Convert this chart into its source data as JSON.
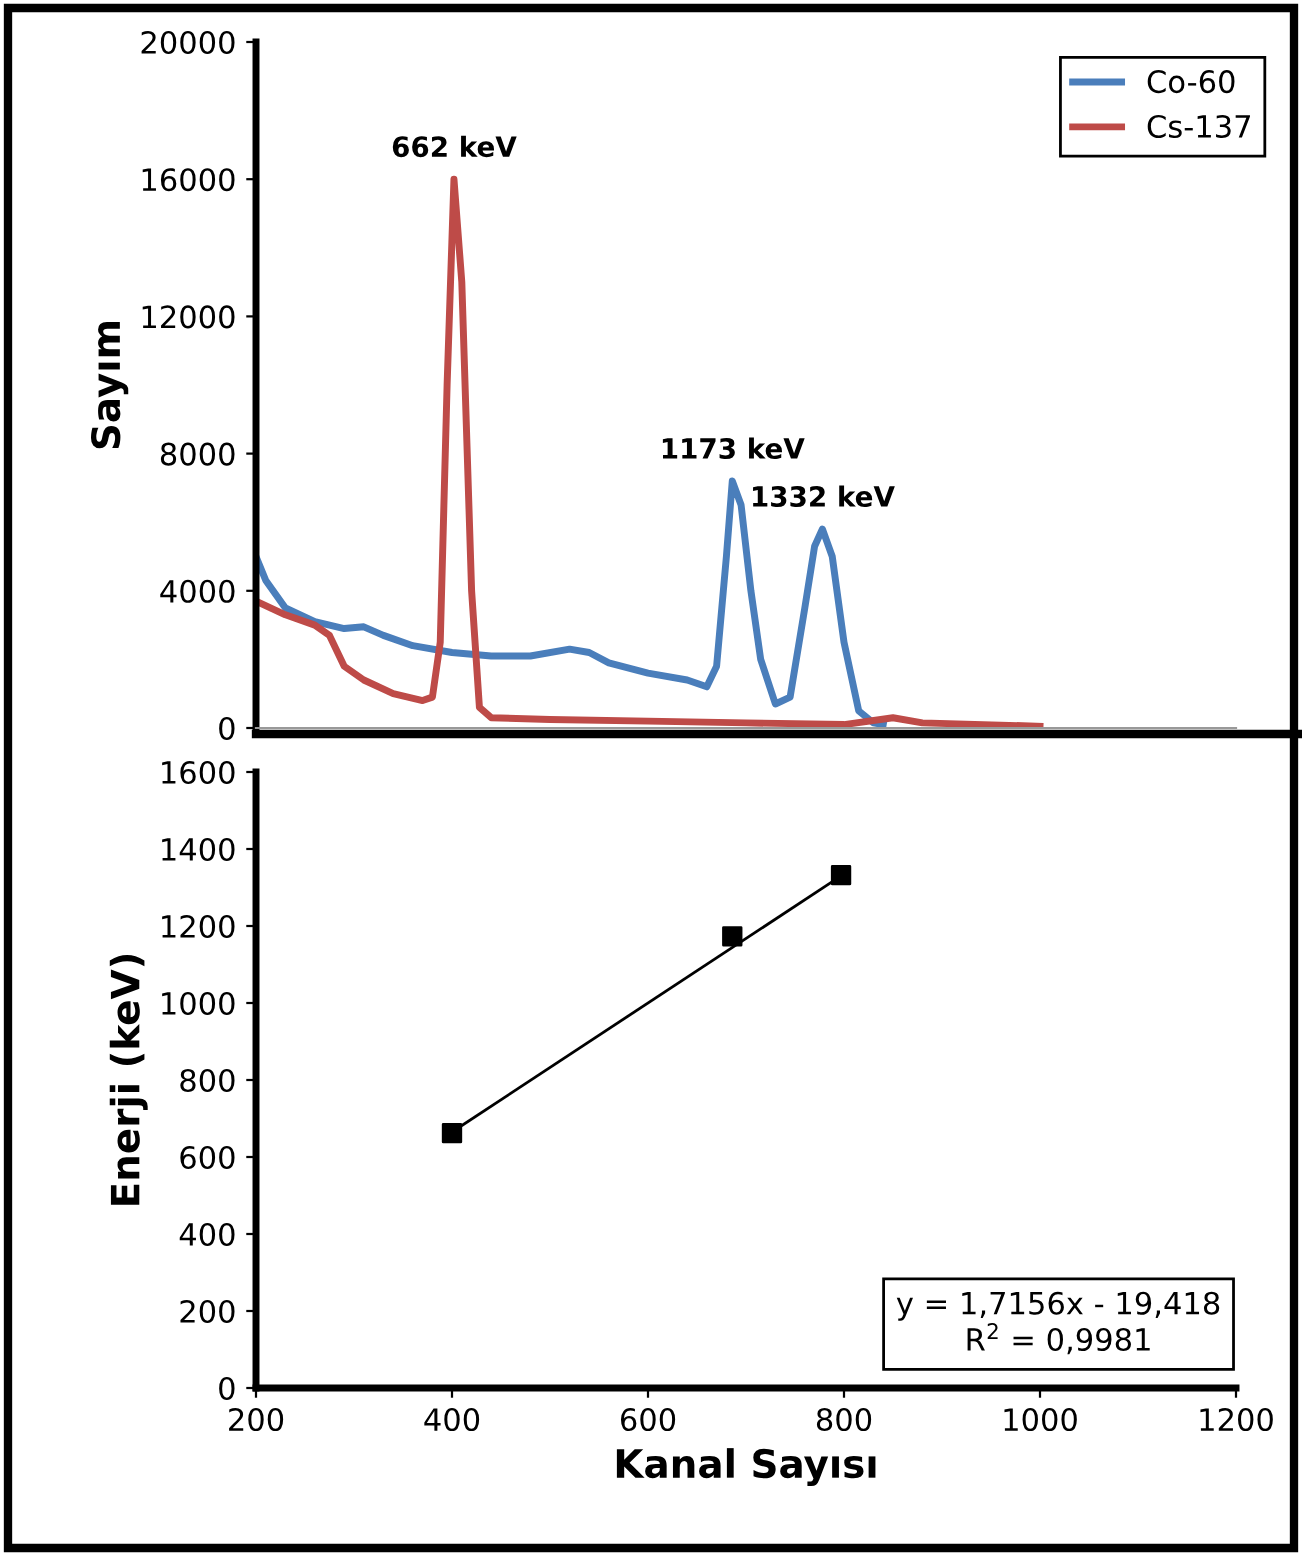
{
  "chart_data": [
    {
      "type": "line",
      "ylabel": "Sayım",
      "xlim": [
        200,
        1200
      ],
      "ylim": [
        0,
        20000
      ],
      "yticks": [
        0,
        4000,
        8000,
        12000,
        16000,
        20000
      ],
      "tick_labels": "y",
      "grid": false,
      "legend": "top right",
      "series": [
        {
          "name": "Co-60",
          "color": "#4a7ebb",
          "x": [
            200,
            210,
            230,
            260,
            290,
            310,
            330,
            360,
            400,
            440,
            480,
            520,
            540,
            560,
            600,
            640,
            660,
            670,
            680,
            686,
            695,
            705,
            715,
            730,
            745,
            760,
            770,
            778,
            788,
            800,
            815,
            830,
            840
          ],
          "values": [
            5000,
            4300,
            3500,
            3100,
            2900,
            2950,
            2700,
            2400,
            2200,
            2100,
            2100,
            2300,
            2200,
            1900,
            1600,
            1400,
            1200,
            1800,
            5000,
            7200,
            6500,
            4000,
            2000,
            700,
            900,
            3500,
            5300,
            5800,
            5000,
            2500,
            500,
            150,
            100
          ]
        },
        {
          "name": "Cs-137",
          "color": "#be4b48",
          "x": [
            200,
            230,
            260,
            275,
            290,
            310,
            340,
            370,
            380,
            388,
            395,
            402,
            410,
            420,
            428,
            440,
            500,
            600,
            700,
            800,
            850,
            880,
            1000
          ],
          "values": [
            3700,
            3300,
            3000,
            2700,
            1800,
            1400,
            1000,
            800,
            900,
            2500,
            10000,
            16000,
            13000,
            4000,
            600,
            300,
            250,
            200,
            150,
            100,
            300,
            150,
            50
          ]
        }
      ],
      "annotations": [
        {
          "text": "662 keV",
          "x": 402,
          "y": 16000
        },
        {
          "text": "1173 keV",
          "x": 686,
          "y": 7200
        },
        {
          "text": "1332 keV",
          "x": 778,
          "y": 5800
        }
      ]
    },
    {
      "type": "scatter",
      "xlabel": "Kanal Sayısı",
      "ylabel": "Enerji (keV)",
      "xlim": [
        200,
        1200
      ],
      "xticks": [
        200,
        400,
        600,
        800,
        1000,
        1200
      ],
      "ylim": [
        0,
        1600
      ],
      "yticks": [
        0,
        200,
        400,
        600,
        800,
        1000,
        1200,
        1400,
        1600
      ],
      "grid": false,
      "series": [
        {
          "color": "#000000",
          "marker": "square",
          "x": [
            400,
            686,
            797
          ],
          "values": [
            662,
            1173,
            1332
          ]
        },
        {
          "type": "line",
          "color": "#000000",
          "marker": "none",
          "x": [
            400,
            797
          ],
          "values": [
            665,
            1330
          ]
        }
      ],
      "annotations": [
        "y = 1,7156x - 19,418\nR$^{2}$ = 0,9981"
      ]
    }
  ]
}
